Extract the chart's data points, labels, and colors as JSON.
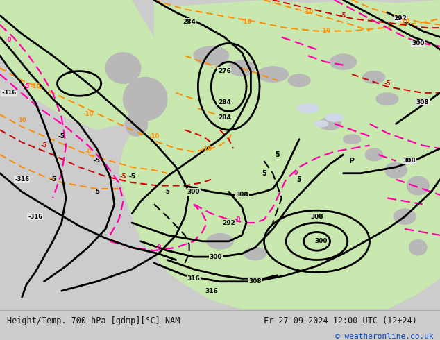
{
  "title_left": "Height/Temp. 700 hPa [gdmp][°C] NAM",
  "title_right": "Fr 27-09-2024 12:00 UTC (12+24)",
  "copyright": "© weatheronline.co.uk",
  "fig_width": 6.34,
  "fig_height": 4.9,
  "map_bg": "#f0f0f0",
  "land_green": "#c8e8b0",
  "land_gray": "#b8b8b8",
  "ocean_bg": "#e8e8e8",
  "bottom_bg": "#cccccc",
  "black_lw": 2.0,
  "colored_lw": 1.4
}
